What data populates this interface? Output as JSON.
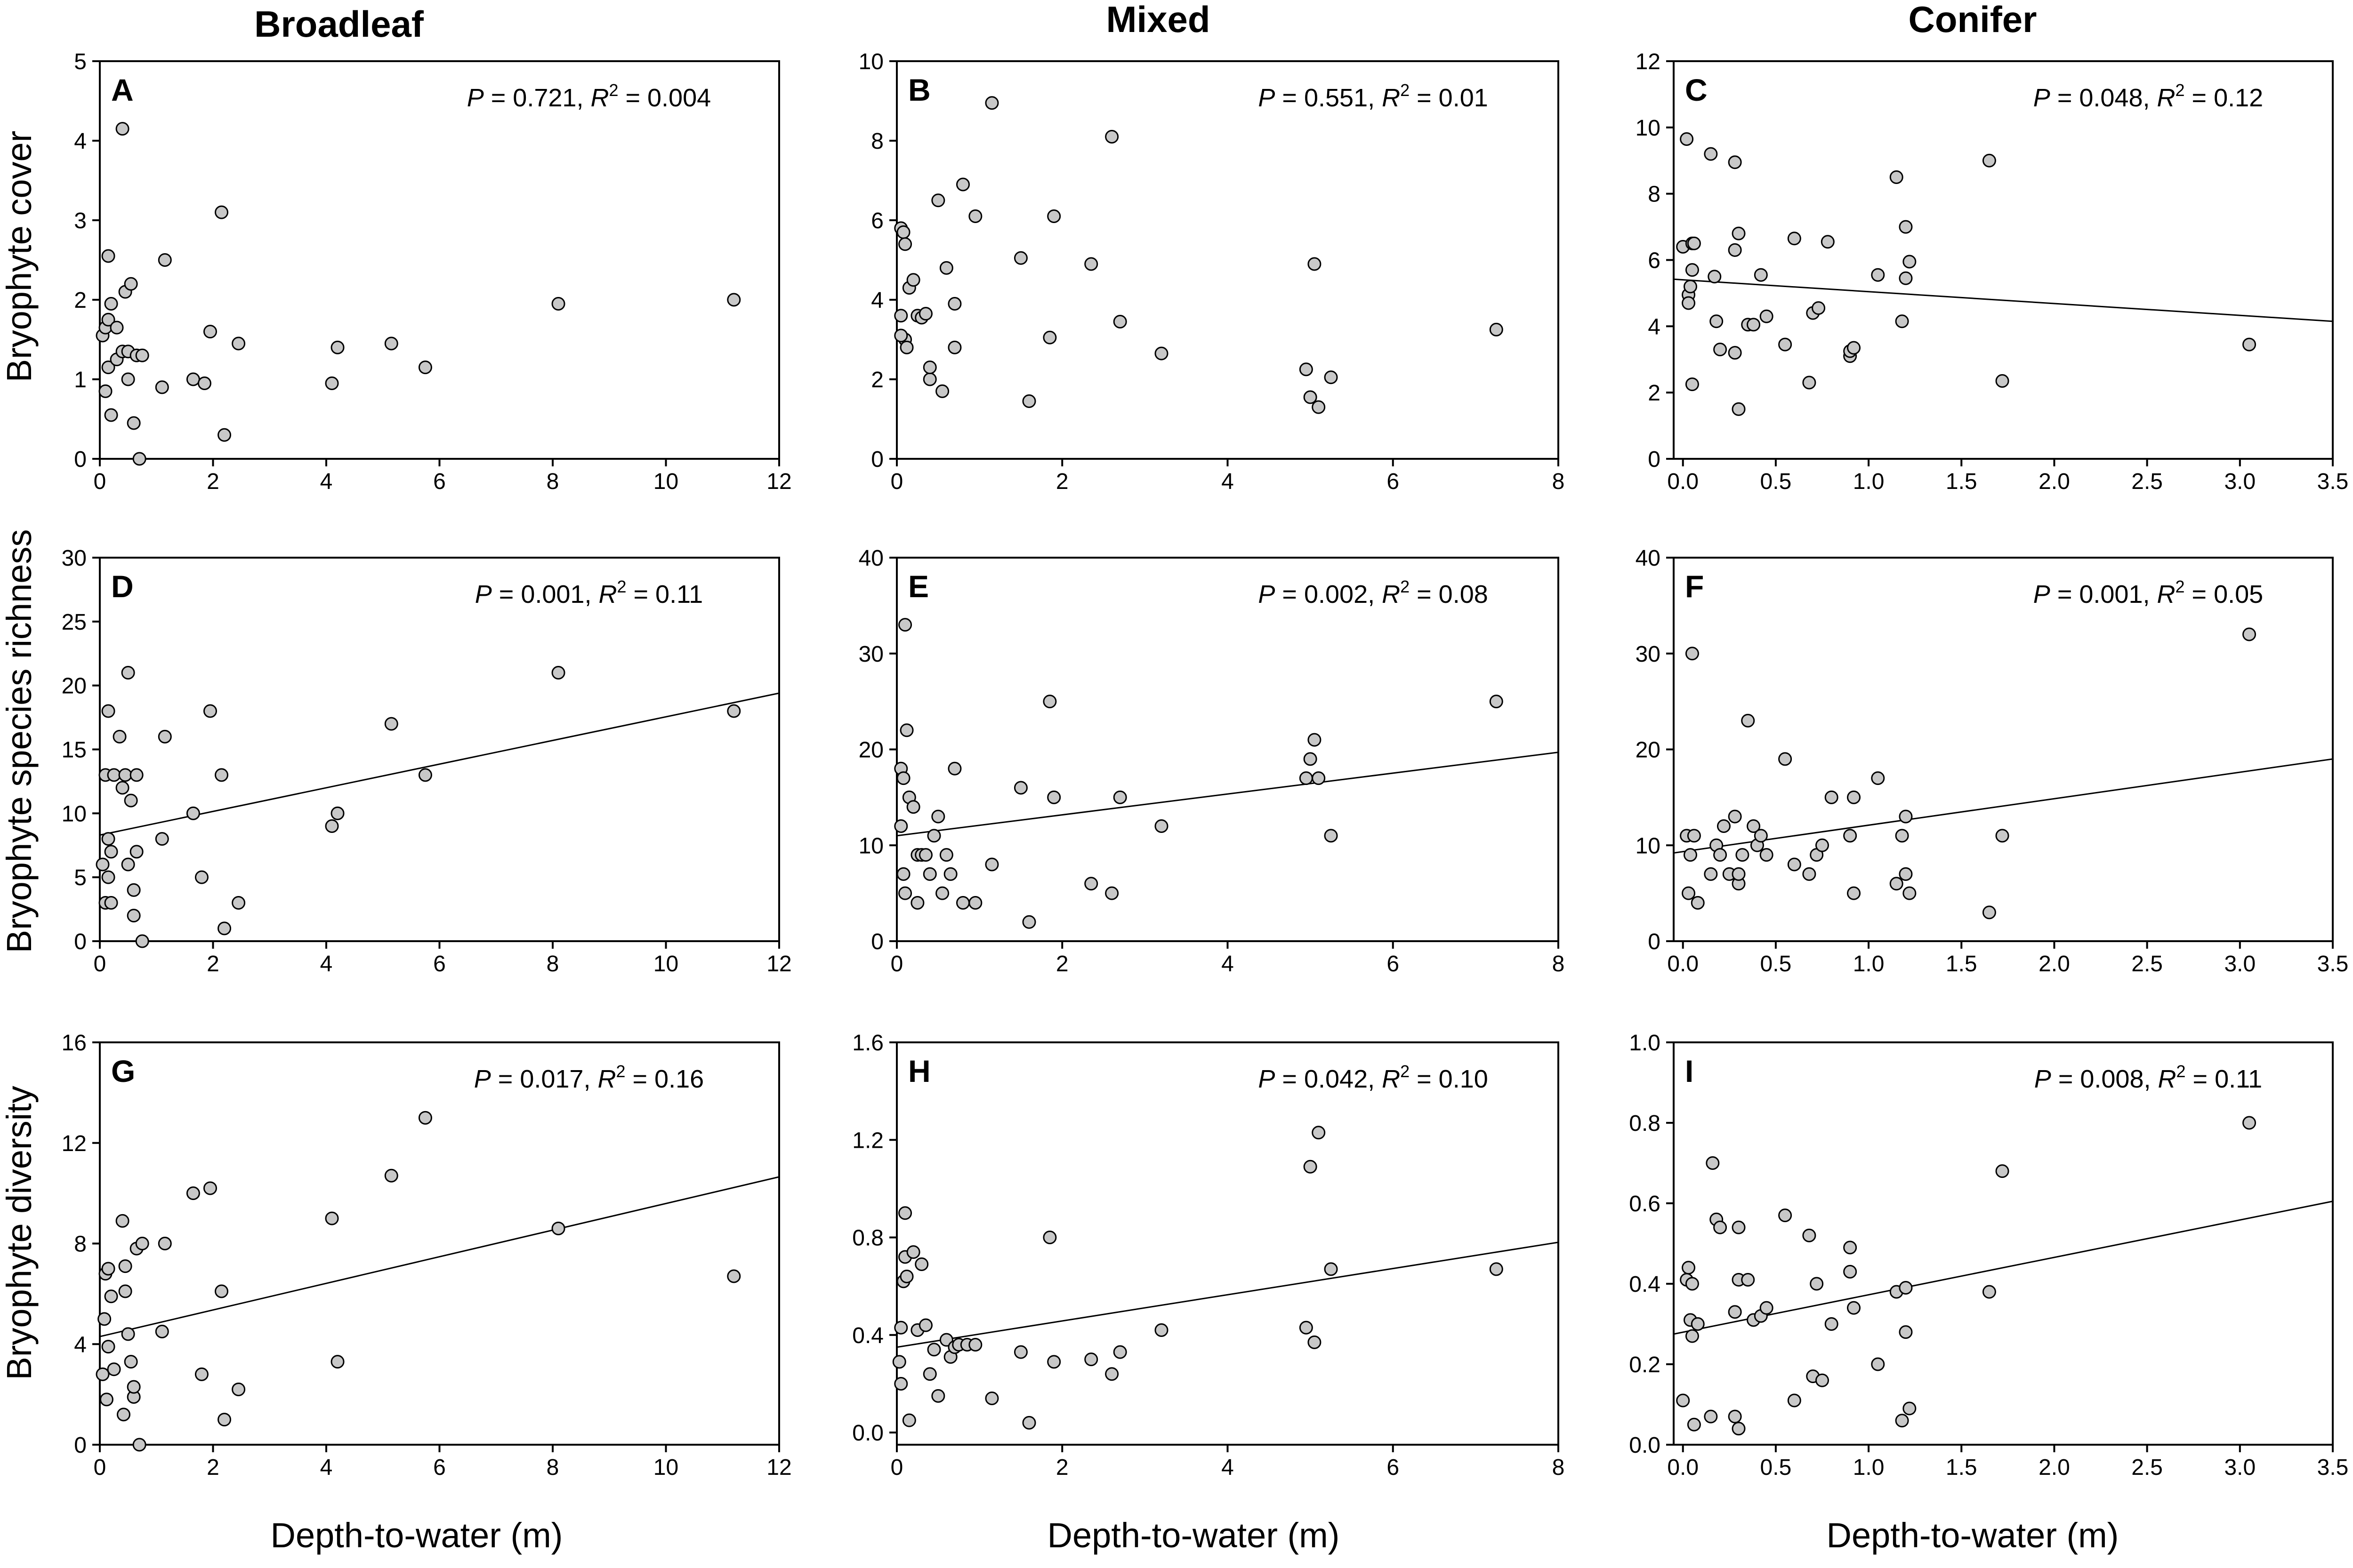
{
  "column_titles": [
    "Broadleaf",
    "Mixed",
    "Conifer"
  ],
  "row_labels": [
    "Bryophyte cover",
    "Bryophyte species richness",
    "Bryophyte diversity"
  ],
  "x_axis_label": "Depth-to-water (m)",
  "chart_data": [
    {
      "panel": "A",
      "type": "scatter",
      "forest": "Broadleaf",
      "ylabel": "Bryophyte cover",
      "xlabel": "Depth-to-water (m)",
      "annotation": {
        "p": "0.721",
        "r2": "0.004"
      },
      "xlim": [
        0,
        12
      ],
      "ylim": [
        0,
        5
      ],
      "xticks": [
        0,
        2,
        4,
        6,
        8,
        10,
        12
      ],
      "yticks": [
        0,
        1,
        2,
        3,
        4,
        5
      ],
      "xticklabels": [
        "0",
        "2",
        "4",
        "6",
        "8",
        "10",
        "12"
      ],
      "yticklabels": [
        "0",
        "1",
        "2",
        "3",
        "4",
        "5"
      ],
      "fit": null,
      "x": [
        0.05,
        0.1,
        0.15,
        0.2,
        0.15,
        0.1,
        0.15,
        0.2,
        0.3,
        0.3,
        0.4,
        0.45,
        0.5,
        0.5,
        0.55,
        0.6,
        0.65,
        0.7,
        0.4,
        0.75,
        1.1,
        1.15,
        1.65,
        1.85,
        1.95,
        2.15,
        2.2,
        2.45,
        4.1,
        4.2,
        5.15,
        5.75,
        8.1,
        11.2
      ],
      "y": [
        1.55,
        1.65,
        1.75,
        1.95,
        2.55,
        0.85,
        1.15,
        0.55,
        1.25,
        1.65,
        1.35,
        2.1,
        1.0,
        1.35,
        2.2,
        0.45,
        1.3,
        0.0,
        4.15,
        1.3,
        0.9,
        2.5,
        1.0,
        0.95,
        1.6,
        3.1,
        0.3,
        1.45,
        0.95,
        1.4,
        1.45,
        1.15,
        1.95,
        2.0
      ]
    },
    {
      "panel": "B",
      "type": "scatter",
      "forest": "Mixed",
      "ylabel": "Bryophyte cover",
      "xlabel": "Depth-to-water (m)",
      "annotation": {
        "p": "0.551",
        "r2": "0.01"
      },
      "xlim": [
        0,
        8
      ],
      "ylim": [
        0,
        10
      ],
      "xticks": [
        0,
        2,
        4,
        6,
        8
      ],
      "yticks": [
        0,
        2,
        4,
        6,
        8,
        10
      ],
      "xticklabels": [
        "0",
        "2",
        "4",
        "6",
        "8"
      ],
      "yticklabels": [
        "0",
        "2",
        "4",
        "6",
        "8",
        "10"
      ],
      "fit": null,
      "x": [
        0.05,
        0.08,
        0.1,
        0.05,
        0.1,
        0.12,
        0.15,
        0.05,
        0.2,
        0.25,
        0.3,
        0.35,
        0.4,
        0.4,
        0.5,
        0.55,
        0.6,
        0.7,
        0.7,
        0.8,
        0.95,
        1.15,
        1.5,
        1.6,
        1.85,
        1.9,
        2.35,
        2.6,
        2.7,
        3.2,
        4.95,
        5.0,
        5.05,
        5.1,
        5.25,
        7.25
      ],
      "y": [
        5.8,
        5.7,
        5.4,
        3.6,
        3.0,
        2.8,
        4.3,
        3.1,
        4.5,
        3.6,
        3.55,
        3.65,
        2.0,
        2.3,
        6.5,
        1.7,
        4.8,
        3.9,
        2.8,
        6.9,
        6.1,
        8.95,
        5.05,
        1.45,
        3.05,
        6.1,
        4.9,
        8.1,
        3.45,
        2.65,
        2.25,
        1.55,
        4.9,
        1.3,
        2.05,
        3.25
      ]
    },
    {
      "panel": "C",
      "type": "scatter",
      "forest": "Conifer",
      "ylabel": "Bryophyte cover",
      "xlabel": "Depth-to-water (m)",
      "annotation": {
        "p": "0.048",
        "r2": "0.12"
      },
      "xlim": [
        -0.05,
        3.5
      ],
      "ylim": [
        0,
        12
      ],
      "xticks": [
        0,
        0.5,
        1.0,
        1.5,
        2.0,
        2.5,
        3.0,
        3.5
      ],
      "yticks": [
        0,
        2,
        4,
        6,
        8,
        10,
        12
      ],
      "xticklabels": [
        "0.0",
        "0.5",
        "1.0",
        "1.5",
        "2.0",
        "2.5",
        "3.0",
        "3.5"
      ],
      "yticklabels": [
        "0",
        "2",
        "4",
        "6",
        "8",
        "10",
        "12"
      ],
      "fit": [
        [
          -0.05,
          5.42
        ],
        [
          3.5,
          4.15
        ]
      ],
      "x": [
        0.0,
        0.02,
        0.03,
        0.03,
        0.04,
        0.05,
        0.05,
        0.05,
        0.06,
        0.15,
        0.17,
        0.18,
        0.2,
        0.28,
        0.28,
        0.28,
        0.3,
        0.3,
        0.35,
        0.38,
        0.42,
        0.45,
        0.55,
        0.6,
        0.68,
        0.7,
        0.73,
        0.78,
        0.9,
        0.9,
        0.92,
        1.05,
        1.15,
        1.18,
        1.2,
        1.2,
        1.22,
        1.65,
        1.72,
        3.05
      ],
      "y": [
        6.4,
        9.65,
        4.95,
        4.7,
        5.2,
        6.5,
        2.25,
        5.7,
        6.5,
        9.2,
        5.5,
        4.15,
        3.3,
        8.95,
        6.3,
        3.2,
        1.5,
        6.8,
        4.05,
        4.05,
        5.55,
        4.3,
        3.45,
        6.65,
        2.3,
        4.4,
        4.55,
        6.55,
        3.1,
        3.25,
        3.35,
        5.55,
        8.5,
        4.15,
        7.0,
        5.45,
        5.95,
        9.0,
        2.35,
        3.45
      ]
    },
    {
      "panel": "D",
      "type": "scatter",
      "forest": "Broadleaf",
      "ylabel": "Bryophyte species richness",
      "xlabel": "Depth-to-water (m)",
      "annotation": {
        "p": "0.001",
        "r2": "0.11"
      },
      "xlim": [
        0,
        12
      ],
      "ylim": [
        0,
        30
      ],
      "xticks": [
        0,
        2,
        4,
        6,
        8,
        10,
        12
      ],
      "yticks": [
        0,
        5,
        10,
        15,
        20,
        25,
        30
      ],
      "xticklabels": [
        "0",
        "2",
        "4",
        "6",
        "8",
        "10",
        "12"
      ],
      "yticklabels": [
        "0",
        "5",
        "10",
        "15",
        "20",
        "25",
        "30"
      ],
      "fit": [
        [
          0,
          8.3
        ],
        [
          12,
          19.4
        ]
      ],
      "x": [
        0.05,
        0.1,
        0.1,
        0.15,
        0.15,
        0.15,
        0.2,
        0.2,
        0.25,
        0.35,
        0.4,
        0.45,
        0.5,
        0.55,
        0.5,
        0.6,
        0.6,
        0.65,
        0.65,
        0.75,
        1.1,
        1.15,
        1.65,
        1.8,
        1.95,
        2.15,
        2.2,
        2.45,
        4.1,
        4.2,
        5.15,
        5.75,
        8.1,
        11.2
      ],
      "y": [
        6,
        13,
        3,
        18,
        8,
        5,
        7,
        3,
        13,
        16,
        12,
        13,
        21,
        11,
        6,
        2,
        4,
        7,
        13,
        0,
        8,
        16,
        10,
        5,
        18,
        13,
        1,
        3,
        9,
        10,
        17,
        13,
        21,
        18
      ]
    },
    {
      "panel": "E",
      "type": "scatter",
      "forest": "Mixed",
      "ylabel": "Bryophyte species richness",
      "xlabel": "Depth-to-water (m)",
      "annotation": {
        "p": "0.002",
        "r2": "0.08"
      },
      "xlim": [
        0,
        8
      ],
      "ylim": [
        0,
        40
      ],
      "xticks": [
        0,
        2,
        4,
        6,
        8
      ],
      "yticks": [
        0,
        10,
        20,
        30,
        40
      ],
      "xticklabels": [
        "0",
        "2",
        "4",
        "6",
        "8"
      ],
      "yticklabels": [
        "0",
        "10",
        "20",
        "30",
        "40"
      ],
      "fit": [
        [
          0,
          11.0
        ],
        [
          8,
          19.7
        ]
      ],
      "x": [
        0.05,
        0.05,
        0.08,
        0.08,
        0.1,
        0.1,
        0.12,
        0.15,
        0.2,
        0.25,
        0.25,
        0.3,
        0.35,
        0.4,
        0.45,
        0.5,
        0.55,
        0.6,
        0.65,
        0.7,
        0.8,
        0.95,
        1.15,
        1.5,
        1.6,
        1.85,
        1.9,
        2.35,
        2.6,
        2.7,
        3.2,
        4.95,
        5.0,
        5.05,
        5.1,
        5.25,
        7.25
      ],
      "y": [
        12,
        18,
        17,
        7,
        5,
        33,
        22,
        15,
        14,
        9,
        4,
        9,
        9,
        7,
        11,
        13,
        5,
        9,
        7,
        18,
        4,
        4,
        8,
        16,
        2,
        25,
        15,
        6,
        5,
        15,
        12,
        17,
        19,
        21,
        17,
        11,
        25
      ]
    },
    {
      "panel": "F",
      "type": "scatter",
      "forest": "Conifer",
      "ylabel": "Bryophyte species richness",
      "xlabel": "Depth-to-water (m)",
      "annotation": {
        "p": "0.001",
        "r2": "0.05"
      },
      "xlim": [
        -0.05,
        3.5
      ],
      "ylim": [
        0,
        40
      ],
      "xticks": [
        0,
        0.5,
        1.0,
        1.5,
        2.0,
        2.5,
        3.0,
        3.5
      ],
      "yticks": [
        0,
        10,
        20,
        30,
        40
      ],
      "xticklabels": [
        "0.0",
        "0.5",
        "1.0",
        "1.5",
        "2.0",
        "2.5",
        "3.0",
        "3.5"
      ],
      "yticklabels": [
        "0",
        "10",
        "20",
        "30",
        "40"
      ],
      "fit": [
        [
          -0.05,
          9.2
        ],
        [
          3.5,
          19.0
        ]
      ],
      "x": [
        0.02,
        0.03,
        0.04,
        0.05,
        0.06,
        0.08,
        0.15,
        0.18,
        0.2,
        0.22,
        0.25,
        0.28,
        0.3,
        0.3,
        0.32,
        0.35,
        0.38,
        0.4,
        0.42,
        0.45,
        0.55,
        0.6,
        0.68,
        0.72,
        0.75,
        0.8,
        0.9,
        0.92,
        0.92,
        1.05,
        1.15,
        1.18,
        1.2,
        1.2,
        1.22,
        1.65,
        1.72,
        3.05
      ],
      "y": [
        11,
        5,
        9,
        30,
        11,
        4,
        7,
        10,
        9,
        12,
        7,
        13,
        6,
        7,
        9,
        23,
        12,
        10,
        11,
        9,
        19,
        8,
        7,
        9,
        10,
        15,
        11,
        15,
        5,
        17,
        6,
        11,
        13,
        7,
        5,
        3,
        11,
        32
      ]
    },
    {
      "panel": "G",
      "type": "scatter",
      "forest": "Broadleaf",
      "ylabel": "Bryophyte diversity",
      "xlabel": "Depth-to-water (m)",
      "annotation": {
        "p": "0.017",
        "r2": "0.16"
      },
      "xlim": [
        0,
        12
      ],
      "ylim": [
        0,
        16
      ],
      "xticks": [
        0,
        2,
        4,
        6,
        8,
        10,
        12
      ],
      "yticks": [
        0,
        4,
        8,
        12,
        16
      ],
      "xticklabels": [
        "0",
        "2",
        "4",
        "6",
        "8",
        "10",
        "12"
      ],
      "yticklabels": [
        "0",
        "4",
        "8",
        "12",
        "16"
      ],
      "fit": [
        [
          0,
          4.3
        ],
        [
          12,
          10.65
        ]
      ],
      "x": [
        0.05,
        0.08,
        0.1,
        0.12,
        0.15,
        0.15,
        0.2,
        0.25,
        0.4,
        0.42,
        0.45,
        0.45,
        0.5,
        0.55,
        0.6,
        0.6,
        0.65,
        0.7,
        0.75,
        1.1,
        1.15,
        1.65,
        1.8,
        1.95,
        2.15,
        2.2,
        2.45,
        4.1,
        4.2,
        5.15,
        5.75,
        8.1,
        11.2
      ],
      "y": [
        2.8,
        5.0,
        6.8,
        1.8,
        7.0,
        3.9,
        5.9,
        3.0,
        8.9,
        1.2,
        7.1,
        6.1,
        4.4,
        3.3,
        1.9,
        2.3,
        7.8,
        0.0,
        8.0,
        4.5,
        8.0,
        10.0,
        2.8,
        10.2,
        6.1,
        1.0,
        2.2,
        9.0,
        3.3,
        10.7,
        13.0,
        8.6,
        6.7
      ]
    },
    {
      "panel": "H",
      "type": "scatter",
      "forest": "Mixed",
      "ylabel": "Bryophyte diversity",
      "xlabel": "Depth-to-water (m)",
      "annotation": {
        "p": "0.042",
        "r2": "0.10"
      },
      "xlim": [
        0,
        8
      ],
      "ylim": [
        -0.05,
        1.6
      ],
      "xticks": [
        0,
        2,
        4,
        6,
        8
      ],
      "yticks": [
        0.0,
        0.4,
        0.8,
        1.2,
        1.6
      ],
      "xticklabels": [
        "0",
        "2",
        "4",
        "6",
        "8"
      ],
      "yticklabels": [
        "0.0",
        "0.4",
        "0.8",
        "1.2",
        "1.6"
      ],
      "fit": [
        [
          0,
          0.35
        ],
        [
          8,
          0.78
        ]
      ],
      "x": [
        0.03,
        0.05,
        0.05,
        0.08,
        0.1,
        0.1,
        0.12,
        0.15,
        0.2,
        0.25,
        0.3,
        0.35,
        0.4,
        0.45,
        0.5,
        0.6,
        0.65,
        0.7,
        0.75,
        0.85,
        0.95,
        1.15,
        1.5,
        1.6,
        1.85,
        1.9,
        2.35,
        2.6,
        2.7,
        3.2,
        4.95,
        5.0,
        5.05,
        5.1,
        5.25,
        7.25
      ],
      "y": [
        0.29,
        0.43,
        0.2,
        0.62,
        0.72,
        0.9,
        0.64,
        0.05,
        0.74,
        0.42,
        0.69,
        0.44,
        0.24,
        0.34,
        0.15,
        0.38,
        0.31,
        0.35,
        0.36,
        0.36,
        0.36,
        0.14,
        0.33,
        0.04,
        0.8,
        0.29,
        0.3,
        0.24,
        0.33,
        0.42,
        0.43,
        1.09,
        0.37,
        1.23,
        0.67,
        0.67
      ]
    },
    {
      "panel": "I",
      "type": "scatter",
      "forest": "Conifer",
      "ylabel": "Bryophyte diversity",
      "xlabel": "Depth-to-water (m)",
      "annotation": {
        "p": "0.008",
        "r2": "0.11"
      },
      "xlim": [
        -0.05,
        3.5
      ],
      "ylim": [
        0,
        1.0
      ],
      "xticks": [
        0,
        0.5,
        1.0,
        1.5,
        2.0,
        2.5,
        3.0,
        3.5
      ],
      "yticks": [
        0,
        0.2,
        0.4,
        0.6,
        0.8,
        1.0
      ],
      "xticklabels": [
        "0.0",
        "0.5",
        "1.0",
        "1.5",
        "2.0",
        "2.5",
        "3.0",
        "3.5"
      ],
      "yticklabels": [
        "0.0",
        "0.2",
        "0.4",
        "0.6",
        "0.8",
        "1.0"
      ],
      "fit": [
        [
          -0.05,
          0.275
        ],
        [
          3.5,
          0.605
        ]
      ],
      "x": [
        0.0,
        0.02,
        0.03,
        0.04,
        0.05,
        0.05,
        0.06,
        0.08,
        0.15,
        0.16,
        0.18,
        0.2,
        0.28,
        0.28,
        0.3,
        0.3,
        0.3,
        0.35,
        0.38,
        0.42,
        0.45,
        0.55,
        0.6,
        0.68,
        0.7,
        0.72,
        0.75,
        0.8,
        0.9,
        0.9,
        0.92,
        1.05,
        1.15,
        1.18,
        1.2,
        1.2,
        1.22,
        1.65,
        1.72,
        3.05
      ],
      "y": [
        0.11,
        0.41,
        0.44,
        0.31,
        0.27,
        0.4,
        0.05,
        0.3,
        0.07,
        0.7,
        0.56,
        0.54,
        0.07,
        0.33,
        0.54,
        0.41,
        0.04,
        0.41,
        0.31,
        0.32,
        0.34,
        0.57,
        0.11,
        0.52,
        0.17,
        0.4,
        0.16,
        0.3,
        0.43,
        0.49,
        0.34,
        0.2,
        0.38,
        0.06,
        0.39,
        0.28,
        0.09,
        0.38,
        0.68,
        0.8
      ]
    }
  ]
}
